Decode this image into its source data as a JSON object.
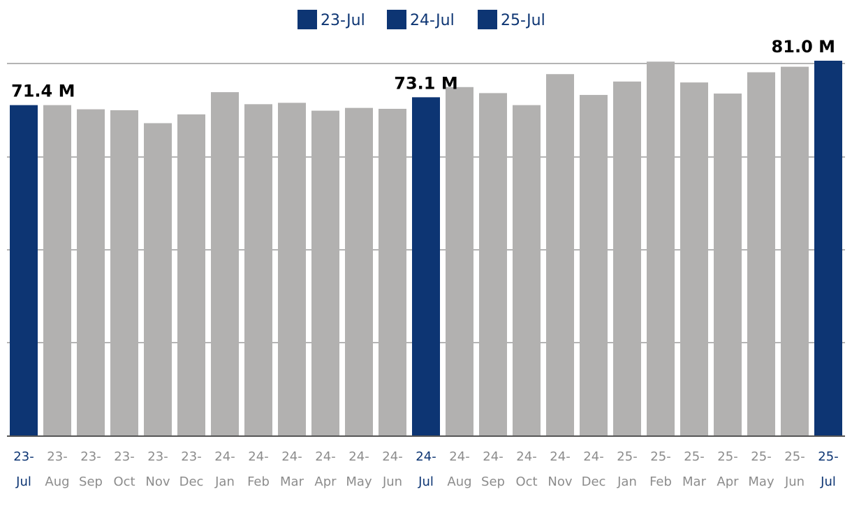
{
  "chart_data": {
    "type": "bar",
    "title": "",
    "xlabel": "",
    "ylabel": "",
    "ylim": [
      0,
      81
    ],
    "grid": true,
    "legend_position": "top-center",
    "legend": [
      "23-Jul",
      "24-Jul",
      "25-Jul"
    ],
    "categories": [
      [
        "23-",
        "Jul"
      ],
      [
        "23-",
        "Aug"
      ],
      [
        "23-",
        "Sep"
      ],
      [
        "23-",
        "Oct"
      ],
      [
        "23-",
        "Nov"
      ],
      [
        "23-",
        "Dec"
      ],
      [
        "24-",
        "Jan"
      ],
      [
        "24-",
        "Feb"
      ],
      [
        "24-",
        "Mar"
      ],
      [
        "24-",
        "Apr"
      ],
      [
        "24-",
        "May"
      ],
      [
        "24-",
        "Jun"
      ],
      [
        "24-",
        "Jul"
      ],
      [
        "24-",
        "Aug"
      ],
      [
        "24-",
        "Sep"
      ],
      [
        "24-",
        "Oct"
      ],
      [
        "24-",
        "Nov"
      ],
      [
        "24-",
        "Dec"
      ],
      [
        "25-",
        "Jan"
      ],
      [
        "25-",
        "Feb"
      ],
      [
        "25-",
        "Mar"
      ],
      [
        "25-",
        "Apr"
      ],
      [
        "25-",
        "May"
      ],
      [
        "25-",
        "Jun"
      ],
      [
        "25-",
        "Jul"
      ]
    ],
    "values": [
      71.4,
      71.4,
      70.5,
      70.3,
      67.5,
      69.4,
      74.2,
      71.6,
      71.9,
      70.2,
      70.8,
      70.6,
      73.1,
      75.3,
      74.0,
      71.4,
      78.1,
      73.6,
      76.5,
      80.8,
      76.3,
      73.9,
      78.5,
      79.7,
      81.0
    ],
    "highlight_indices": [
      0,
      12,
      24
    ],
    "data_labels": [
      {
        "index": 0,
        "text": "71.4 M"
      },
      {
        "index": 12,
        "text": "73.1 M"
      },
      {
        "index": 24,
        "text": "81.0 M"
      }
    ]
  },
  "colors": {
    "highlight": "#0d3573",
    "base": "#b2b1b0",
    "grid": "#b4b4b4",
    "axis": "#555555",
    "tick_highlight": "#0d3573",
    "tick_normal": "#8c8c8c"
  }
}
